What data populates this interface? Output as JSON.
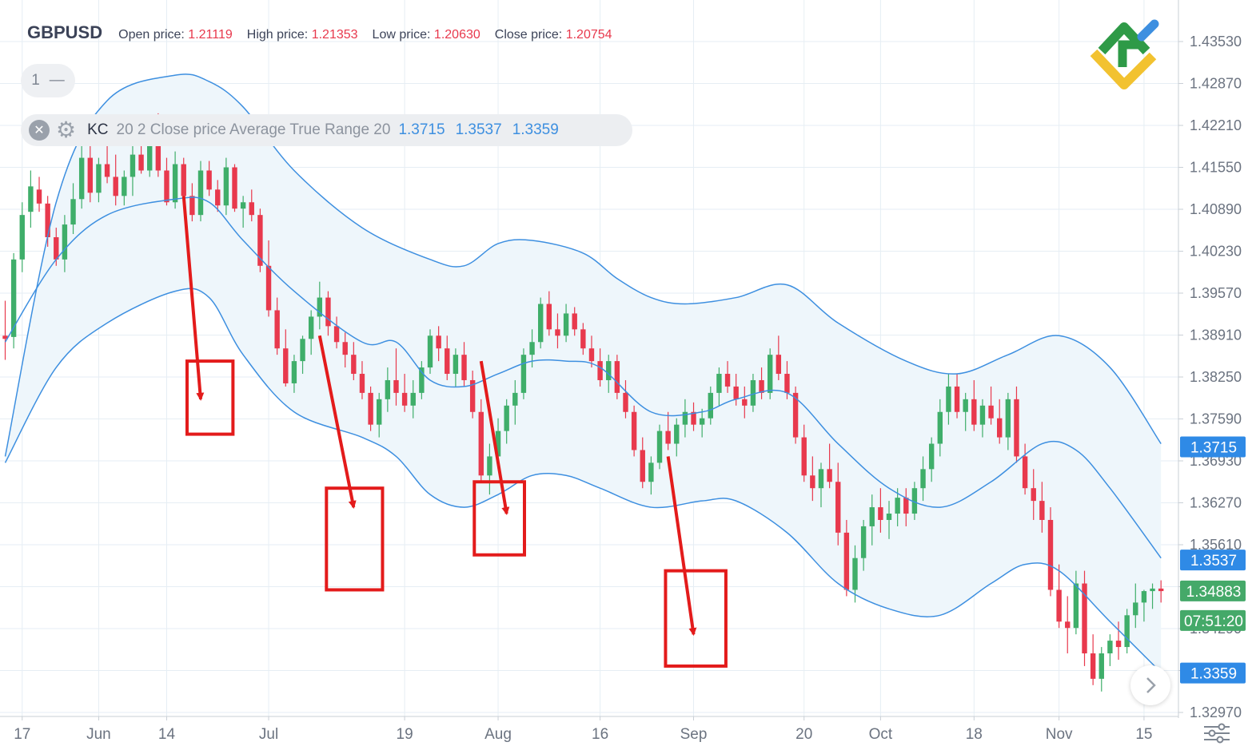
{
  "header": {
    "symbol": "GBPUSD",
    "open_label": "Open price:",
    "open_value": "1.21119",
    "high_label": "High price:",
    "high_value": "1.21353",
    "low_label": "Low price:",
    "low_value": "1.20630",
    "close_label": "Close price:",
    "close_value": "1.20754"
  },
  "pane_pill": {
    "label": "1",
    "collapse_glyph": "—"
  },
  "indicator": {
    "name": "KC",
    "params": "20 2 Close price Average True Range 20",
    "upper": "1.3715",
    "middle": "1.3537",
    "lower": "1.3359",
    "close_icon": "close-icon",
    "settings_icon": "gear-icon"
  },
  "price_badges": {
    "upper": "1.3715",
    "middle": "1.3537",
    "lower": "1.3359",
    "current": "1.34883",
    "countdown": "07:51:20"
  },
  "colors": {
    "bull": "#3fae6a",
    "bear": "#e8394d",
    "channel": "#3d8fe0",
    "channel_fill": "#eef6fb",
    "grid": "#e6eef4",
    "axis_text": "#6b7380",
    "badge_blue": "#2f8ae6",
    "badge_green": "#45a969",
    "annotation": "#e31b1b"
  },
  "chart_data": {
    "type": "candlestick",
    "title": "GBPUSD",
    "y_ticks": [
      "1.43530",
      "1.42870",
      "1.42210",
      "1.41550",
      "1.40890",
      "1.40230",
      "1.39570",
      "1.38910",
      "1.38250",
      "1.37590",
      "1.36930",
      "1.36270",
      "1.35610",
      "1.34950",
      "1.34290",
      "1.33630",
      "1.32970"
    ],
    "x_ticks": [
      "17",
      "Jun",
      "14",
      "Jul",
      "19",
      "Aug",
      "16",
      "Sep",
      "20",
      "Oct",
      "18",
      "Nov",
      "15"
    ],
    "x_tick_bars": [
      2,
      11,
      19,
      31,
      47,
      58,
      70,
      81,
      94,
      103,
      114,
      124,
      134
    ],
    "bar_count": 137,
    "ylim": [
      1.3288,
      1.436
    ],
    "candles_ohlc": [
      [
        1.389,
        1.3945,
        1.3852,
        1.3885
      ],
      [
        1.3888,
        1.402,
        1.387,
        1.401
      ],
      [
        1.401,
        1.41,
        1.399,
        1.408
      ],
      [
        1.4085,
        1.415,
        1.406,
        1.4125
      ],
      [
        1.412,
        1.414,
        1.4085,
        1.4098
      ],
      [
        1.4098,
        1.411,
        1.403,
        1.4045
      ],
      [
        1.4045,
        1.406,
        1.4,
        1.401
      ],
      [
        1.401,
        1.408,
        1.399,
        1.4065
      ],
      [
        1.4065,
        1.413,
        1.405,
        1.4105
      ],
      [
        1.4105,
        1.419,
        1.409,
        1.417
      ],
      [
        1.417,
        1.42,
        1.41,
        1.4115
      ],
      [
        1.4115,
        1.417,
        1.41,
        1.416
      ],
      [
        1.416,
        1.419,
        1.413,
        1.414
      ],
      [
        1.414,
        1.4175,
        1.4095,
        1.411
      ],
      [
        1.411,
        1.415,
        1.4095,
        1.414
      ],
      [
        1.414,
        1.419,
        1.411,
        1.4175
      ],
      [
        1.4175,
        1.4215,
        1.4145,
        1.415
      ],
      [
        1.415,
        1.423,
        1.414,
        1.421
      ],
      [
        1.421,
        1.424,
        1.414,
        1.415
      ],
      [
        1.415,
        1.417,
        1.4095,
        1.41
      ],
      [
        1.41,
        1.418,
        1.409,
        1.416
      ],
      [
        1.416,
        1.417,
        1.41,
        1.411
      ],
      [
        1.411,
        1.413,
        1.407,
        1.408
      ],
      [
        1.408,
        1.4165,
        1.407,
        1.415
      ],
      [
        1.415,
        1.4165,
        1.411,
        1.412
      ],
      [
        1.412,
        1.4135,
        1.4085,
        1.4095
      ],
      [
        1.4095,
        1.417,
        1.408,
        1.4155
      ],
      [
        1.4155,
        1.416,
        1.4085,
        1.409
      ],
      [
        1.409,
        1.411,
        1.406,
        1.41
      ],
      [
        1.41,
        1.412,
        1.407,
        1.408
      ],
      [
        1.408,
        1.409,
        1.399,
        1.4
      ],
      [
        1.4,
        1.404,
        1.392,
        1.393
      ],
      [
        1.393,
        1.395,
        1.386,
        1.387
      ],
      [
        1.387,
        1.39,
        1.381,
        1.3815
      ],
      [
        1.3815,
        1.386,
        1.38,
        1.385
      ],
      [
        1.385,
        1.389,
        1.383,
        1.3885
      ],
      [
        1.3885,
        1.393,
        1.386,
        1.392
      ],
      [
        1.392,
        1.3975,
        1.39,
        1.395
      ],
      [
        1.395,
        1.396,
        1.389,
        1.3905
      ],
      [
        1.3905,
        1.392,
        1.387,
        1.388
      ],
      [
        1.388,
        1.3895,
        1.384,
        1.386
      ],
      [
        1.386,
        1.388,
        1.382,
        1.383
      ],
      [
        1.383,
        1.385,
        1.379,
        1.38
      ],
      [
        1.38,
        1.381,
        1.374,
        1.375
      ],
      [
        1.375,
        1.38,
        1.373,
        1.379
      ],
      [
        1.379,
        1.384,
        1.377,
        1.382
      ],
      [
        1.382,
        1.387,
        1.378,
        1.38
      ],
      [
        1.38,
        1.383,
        1.377,
        1.378
      ],
      [
        1.378,
        1.382,
        1.376,
        1.38
      ],
      [
        1.38,
        1.385,
        1.379,
        1.384
      ],
      [
        1.384,
        1.39,
        1.383,
        1.389
      ],
      [
        1.389,
        1.3905,
        1.385,
        1.387
      ],
      [
        1.387,
        1.389,
        1.382,
        1.383
      ],
      [
        1.383,
        1.387,
        1.381,
        1.386
      ],
      [
        1.386,
        1.388,
        1.381,
        1.382
      ],
      [
        1.382,
        1.3835,
        1.376,
        1.377
      ],
      [
        1.377,
        1.379,
        1.366,
        1.367
      ],
      [
        1.367,
        1.372,
        1.364,
        1.37
      ],
      [
        1.37,
        1.376,
        1.368,
        1.374
      ],
      [
        1.374,
        1.379,
        1.372,
        1.378
      ],
      [
        1.378,
        1.382,
        1.375,
        1.38
      ],
      [
        1.38,
        1.387,
        1.379,
        1.386
      ],
      [
        1.386,
        1.39,
        1.384,
        1.388
      ],
      [
        1.388,
        1.395,
        1.387,
        1.394
      ],
      [
        1.394,
        1.396,
        1.389,
        1.39
      ],
      [
        1.39,
        1.3925,
        1.387,
        1.389
      ],
      [
        1.389,
        1.394,
        1.388,
        1.3925
      ],
      [
        1.3925,
        1.3935,
        1.389,
        1.39
      ],
      [
        1.39,
        1.391,
        1.386,
        1.387
      ],
      [
        1.387,
        1.389,
        1.384,
        1.385
      ],
      [
        1.385,
        1.387,
        1.381,
        1.382
      ],
      [
        1.382,
        1.386,
        1.38,
        1.385
      ],
      [
        1.385,
        1.386,
        1.379,
        1.38
      ],
      [
        1.38,
        1.382,
        1.376,
        1.377
      ],
      [
        1.377,
        1.378,
        1.37,
        1.371
      ],
      [
        1.371,
        1.373,
        1.365,
        1.366
      ],
      [
        1.366,
        1.37,
        1.364,
        1.369
      ],
      [
        1.369,
        1.375,
        1.368,
        1.374
      ],
      [
        1.374,
        1.377,
        1.371,
        1.372
      ],
      [
        1.372,
        1.376,
        1.37,
        1.375
      ],
      [
        1.375,
        1.379,
        1.373,
        1.377
      ],
      [
        1.377,
        1.3785,
        1.374,
        1.375
      ],
      [
        1.375,
        1.3775,
        1.373,
        1.376
      ],
      [
        1.376,
        1.381,
        1.375,
        1.38
      ],
      [
        1.38,
        1.384,
        1.378,
        1.383
      ],
      [
        1.383,
        1.385,
        1.38,
        1.381
      ],
      [
        1.381,
        1.383,
        1.378,
        1.379
      ],
      [
        1.379,
        1.381,
        1.376,
        1.378
      ],
      [
        1.378,
        1.383,
        1.377,
        1.382
      ],
      [
        1.382,
        1.384,
        1.379,
        1.38
      ],
      [
        1.38,
        1.387,
        1.379,
        1.386
      ],
      [
        1.386,
        1.389,
        1.382,
        1.383
      ],
      [
        1.383,
        1.385,
        1.379,
        1.38
      ],
      [
        1.38,
        1.381,
        1.372,
        1.373
      ],
      [
        1.373,
        1.375,
        1.366,
        1.367
      ],
      [
        1.367,
        1.37,
        1.363,
        1.365
      ],
      [
        1.365,
        1.369,
        1.362,
        1.368
      ],
      [
        1.368,
        1.372,
        1.365,
        1.366
      ],
      [
        1.366,
        1.369,
        1.356,
        1.358
      ],
      [
        1.358,
        1.36,
        1.348,
        1.349
      ],
      [
        1.349,
        1.356,
        1.347,
        1.354
      ],
      [
        1.354,
        1.36,
        1.352,
        1.359
      ],
      [
        1.359,
        1.364,
        1.356,
        1.362
      ],
      [
        1.362,
        1.365,
        1.358,
        1.36
      ],
      [
        1.36,
        1.363,
        1.357,
        1.361
      ],
      [
        1.361,
        1.365,
        1.359,
        1.3635
      ],
      [
        1.3635,
        1.365,
        1.359,
        1.361
      ],
      [
        1.361,
        1.366,
        1.36,
        1.365
      ],
      [
        1.365,
        1.37,
        1.363,
        1.368
      ],
      [
        1.368,
        1.373,
        1.366,
        1.372
      ],
      [
        1.372,
        1.379,
        1.37,
        1.377
      ],
      [
        1.377,
        1.383,
        1.375,
        1.381
      ],
      [
        1.381,
        1.383,
        1.376,
        1.377
      ],
      [
        1.377,
        1.38,
        1.374,
        1.379
      ],
      [
        1.379,
        1.382,
        1.374,
        1.375
      ],
      [
        1.375,
        1.379,
        1.373,
        1.378
      ],
      [
        1.378,
        1.381,
        1.375,
        1.376
      ],
      [
        1.376,
        1.379,
        1.372,
        1.373
      ],
      [
        1.373,
        1.38,
        1.371,
        1.379
      ],
      [
        1.379,
        1.381,
        1.369,
        1.37
      ],
      [
        1.37,
        1.372,
        1.364,
        1.365
      ],
      [
        1.365,
        1.368,
        1.36,
        1.363
      ],
      [
        1.363,
        1.366,
        1.358,
        1.36
      ],
      [
        1.36,
        1.362,
        1.348,
        1.349
      ],
      [
        1.349,
        1.353,
        1.343,
        1.344
      ],
      [
        1.344,
        1.348,
        1.339,
        1.343
      ],
      [
        1.343,
        1.352,
        1.342,
        1.35
      ],
      [
        1.35,
        1.352,
        1.337,
        1.339
      ],
      [
        1.339,
        1.342,
        1.334,
        1.335
      ],
      [
        1.335,
        1.34,
        1.333,
        1.339
      ],
      [
        1.339,
        1.342,
        1.337,
        1.341
      ],
      [
        1.341,
        1.344,
        1.338,
        1.34
      ],
      [
        1.34,
        1.346,
        1.339,
        1.345
      ],
      [
        1.345,
        1.35,
        1.343,
        1.347
      ],
      [
        1.347,
        1.349,
        1.344,
        1.3488
      ],
      [
        1.3488,
        1.35,
        1.346,
        1.3492
      ],
      [
        1.3492,
        1.3505,
        1.347,
        1.3488
      ]
    ],
    "keltner_upper": [
      [
        0,
        1.37
      ],
      [
        6,
        1.41
      ],
      [
        12,
        1.426
      ],
      [
        20,
        1.43
      ],
      [
        24,
        1.429
      ],
      [
        28,
        1.425
      ],
      [
        34,
        1.415
      ],
      [
        42,
        1.406
      ],
      [
        50,
        1.401
      ],
      [
        54,
        1.4
      ],
      [
        58,
        1.4035
      ],
      [
        62,
        1.404
      ],
      [
        68,
        1.402
      ],
      [
        72,
        1.398
      ],
      [
        76,
        1.395
      ],
      [
        80,
        1.394
      ],
      [
        86,
        1.395
      ],
      [
        92,
        1.397
      ],
      [
        98,
        1.391
      ],
      [
        106,
        1.385
      ],
      [
        112,
        1.383
      ],
      [
        118,
        1.386
      ],
      [
        124,
        1.389
      ],
      [
        130,
        1.384
      ],
      [
        136,
        1.372
      ]
    ],
    "keltner_middle": [
      [
        0,
        1.388
      ],
      [
        6,
        1.401
      ],
      [
        12,
        1.408
      ],
      [
        20,
        1.4105
      ],
      [
        24,
        1.41
      ],
      [
        28,
        1.404
      ],
      [
        34,
        1.396
      ],
      [
        42,
        1.388
      ],
      [
        46,
        1.388
      ],
      [
        50,
        1.382
      ],
      [
        54,
        1.381
      ],
      [
        58,
        1.383
      ],
      [
        62,
        1.385
      ],
      [
        66,
        1.385
      ],
      [
        70,
        1.384
      ],
      [
        76,
        1.377
      ],
      [
        82,
        1.377
      ],
      [
        86,
        1.379
      ],
      [
        92,
        1.38
      ],
      [
        98,
        1.372
      ],
      [
        104,
        1.365
      ],
      [
        110,
        1.362
      ],
      [
        116,
        1.366
      ],
      [
        122,
        1.372
      ],
      [
        126,
        1.371
      ],
      [
        130,
        1.365
      ],
      [
        136,
        1.354
      ]
    ],
    "keltner_lower": [
      [
        0,
        1.369
      ],
      [
        6,
        1.384
      ],
      [
        12,
        1.391
      ],
      [
        20,
        1.396
      ],
      [
        24,
        1.395
      ],
      [
        28,
        1.386
      ],
      [
        34,
        1.377
      ],
      [
        42,
        1.373
      ],
      [
        46,
        1.37
      ],
      [
        50,
        1.364
      ],
      [
        54,
        1.362
      ],
      [
        58,
        1.364
      ],
      [
        62,
        1.367
      ],
      [
        66,
        1.367
      ],
      [
        70,
        1.365
      ],
      [
        76,
        1.362
      ],
      [
        82,
        1.363
      ],
      [
        86,
        1.363
      ],
      [
        92,
        1.358
      ],
      [
        98,
        1.35
      ],
      [
        104,
        1.346
      ],
      [
        110,
        1.345
      ],
      [
        116,
        1.35
      ],
      [
        120,
        1.353
      ],
      [
        124,
        1.352
      ],
      [
        130,
        1.344
      ],
      [
        136,
        1.336
      ]
    ],
    "annotation_arrows": [
      {
        "from_bar": 21,
        "from_price": 1.411,
        "to_bar": 23,
        "to_price": 1.379
      },
      {
        "from_bar": 37,
        "from_price": 1.389,
        "to_bar": 41,
        "to_price": 1.362
      },
      {
        "from_bar": 56,
        "from_price": 1.385,
        "to_bar": 59,
        "to_price": 1.361
      },
      {
        "from_bar": 78,
        "from_price": 1.37,
        "to_bar": 81,
        "to_price": 1.342
      }
    ],
    "annotation_boxes": [
      {
        "bar_start": 21.4,
        "bar_end": 26.8,
        "price_top": 1.385,
        "price_bottom": 1.3735
      },
      {
        "bar_start": 37.8,
        "bar_end": 44.4,
        "price_top": 1.365,
        "price_bottom": 1.349
      },
      {
        "bar_start": 55.2,
        "bar_end": 61.1,
        "price_top": 1.366,
        "price_bottom": 1.3545
      },
      {
        "bar_start": 77.7,
        "bar_end": 84.8,
        "price_top": 1.352,
        "price_bottom": 1.337
      }
    ],
    "current_price": 1.34883
  }
}
